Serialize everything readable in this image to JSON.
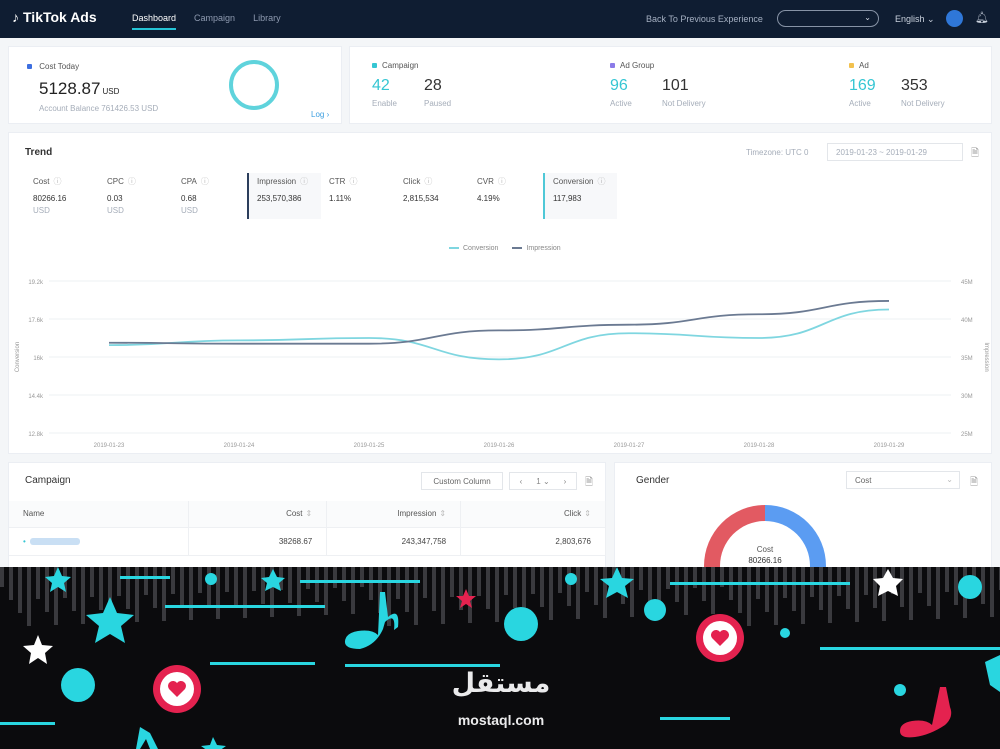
{
  "nav": {
    "logo": "TikTok Ads",
    "links": [
      "Dashboard",
      "Campaign",
      "Library"
    ],
    "back": "Back To Previous Experience",
    "language": "English"
  },
  "cost_today": {
    "title": "Cost Today",
    "value": "5128.87",
    "unit": "USD",
    "balance": "Account Balance 761426.53 USD",
    "log": "Log",
    "ring_progress": 1.0
  },
  "summary": {
    "campaign": {
      "title": "Campaign",
      "a_val": "42",
      "a_lbl": "Enable",
      "b_val": "28",
      "b_lbl": "Paused",
      "color": "#35c6d3"
    },
    "adgroup": {
      "title": "Ad Group",
      "a_val": "96",
      "a_lbl": "Active",
      "b_val": "101",
      "b_lbl": "Not Delivery",
      "color": "#8b7be8"
    },
    "ad": {
      "title": "Ad",
      "a_val": "169",
      "a_lbl": "Active",
      "b_val": "353",
      "b_lbl": "Not Delivery",
      "color": "#f2c14e"
    }
  },
  "trend": {
    "title": "Trend",
    "timezone": "Timezone: UTC 0",
    "date_range": "2019-01-23  ~  2019-01-29",
    "metrics": [
      {
        "name": "Cost",
        "value": "80266.16",
        "unit": "USD"
      },
      {
        "name": "CPC",
        "value": "0.03",
        "unit": "USD"
      },
      {
        "name": "CPA",
        "value": "0.68",
        "unit": "USD"
      },
      {
        "name": "Impression",
        "value": "253,570,386",
        "unit": ""
      },
      {
        "name": "CTR",
        "value": "1.11%",
        "unit": ""
      },
      {
        "name": "Click",
        "value": "2,815,534",
        "unit": ""
      },
      {
        "name": "CVR",
        "value": "4.19%",
        "unit": ""
      },
      {
        "name": "Conversion",
        "value": "117,983",
        "unit": ""
      }
    ]
  },
  "chart_data": {
    "type": "line",
    "x": [
      "2019-01-23",
      "2019-01-24",
      "2019-01-25",
      "2019-01-26",
      "2019-01-27",
      "2019-01-28",
      "2019-01-29"
    ],
    "series": [
      {
        "name": "Conversion",
        "axis": "left",
        "color": "#7fd6e0",
        "values": [
          16500,
          16700,
          16800,
          15900,
          17000,
          16800,
          18000
        ]
      },
      {
        "name": "Impression",
        "axis": "right",
        "color": "#6b7a92",
        "values": [
          34.5,
          34.4,
          34.4,
          35.8,
          36.4,
          37.5,
          38.9
        ]
      }
    ],
    "xlabel": "",
    "ylabel": "Conversion",
    "y2label": "Impression",
    "ylim": [
      12800,
      19200
    ],
    "y2lim": [
      25,
      41
    ],
    "yticks": [
      "12.8k",
      "14.4k",
      "16k",
      "17.6k",
      "19.2k"
    ],
    "y2ticks": [
      "25M",
      "30M",
      "35M",
      "40M",
      "45M"
    ],
    "grid": true,
    "legend": "top-center"
  },
  "campaign": {
    "title": "Campaign",
    "custom_column": "Custom Column",
    "page": "1",
    "headers": [
      "Name",
      "Cost",
      "Impression",
      "Click"
    ],
    "rows": [
      {
        "cost": "38268.67",
        "impression": "243,347,758",
        "click": "2,803,676"
      }
    ]
  },
  "gender": {
    "title": "Gender",
    "select": "Cost",
    "center_label": "Cost",
    "center_value": "80266.16"
  },
  "watermark": {
    "arabic": "مستقل",
    "latin": "mostaql.com"
  }
}
